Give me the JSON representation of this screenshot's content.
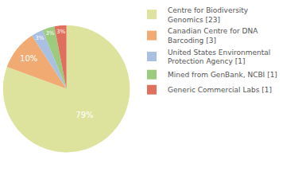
{
  "chart_data": {
    "type": "pie",
    "categories": [
      "Centre for Biodiversity Genomics [23]",
      "Canadian Centre for DNA Barcoding [3]",
      "United States Environmental Protection Agency [1]",
      "Mined from GenBank, NCBI [1]",
      "Generic Commercial Labs [1]"
    ],
    "values": [
      79,
      10,
      3,
      3,
      3
    ],
    "value_labels": [
      "79%",
      "10%",
      "3%",
      "3%",
      "3%"
    ],
    "colors": [
      "#dde39c",
      "#f0aa72",
      "#a9c0e2",
      "#9dcb7d",
      "#e0705d"
    ],
    "data_labels": true,
    "legend": "right"
  }
}
